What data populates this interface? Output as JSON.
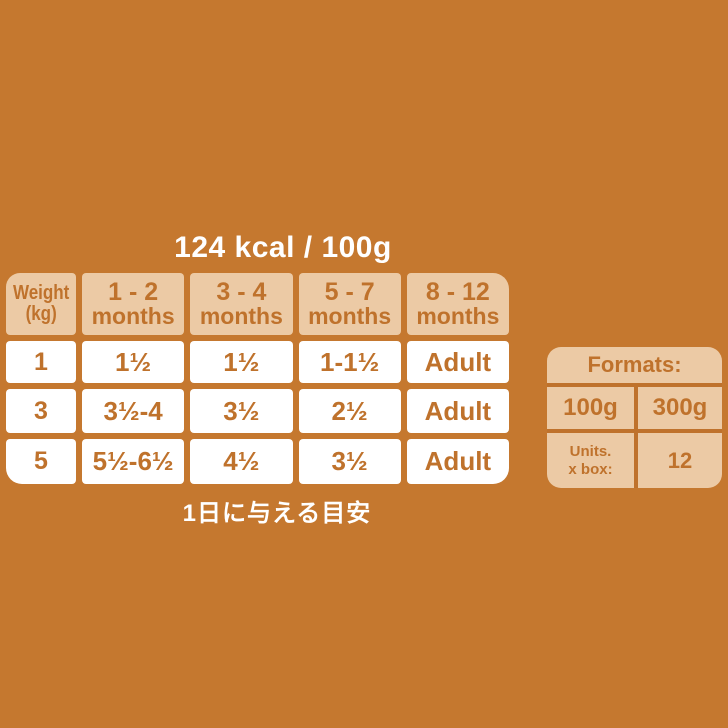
{
  "page": {
    "background_color": "#c5782f",
    "accent_color": "#bf722c",
    "tan_color": "#eccaa5",
    "cell_color": "#ffffff"
  },
  "header": {
    "calorie_label": "124 kcal / 100g"
  },
  "feeding_table": {
    "columns": [
      {
        "line1": "Weight",
        "line2": "(kg)"
      },
      {
        "line1": "1 - 2",
        "line2": "months"
      },
      {
        "line1": "3 - 4",
        "line2": "months"
      },
      {
        "line1": "5 - 7",
        "line2": "months"
      },
      {
        "line1": "8 - 12",
        "line2": "months"
      }
    ],
    "rows": [
      {
        "weight": "1",
        "cells": [
          "1½",
          "1½",
          "1-1½",
          "Adult"
        ]
      },
      {
        "weight": "3",
        "cells": [
          "3½-4",
          "3½",
          "2½",
          "Adult"
        ]
      },
      {
        "weight": "5",
        "cells": [
          "5½-6½",
          "4½",
          "3½",
          "Adult"
        ]
      }
    ],
    "caption": "1日に与える目安"
  },
  "formats_box": {
    "title": "Formats:",
    "sizes": [
      "100g",
      "300g"
    ],
    "units_label_line1": "Units.",
    "units_label_line2": "x box:",
    "units_value": "12"
  }
}
